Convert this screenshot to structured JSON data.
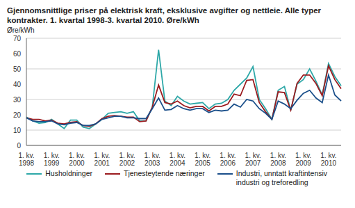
{
  "chart_data": {
    "type": "line",
    "title": "Gjennomsnittlige priser på elektrisk kraft, eksklusive avgifter og nettleie. Alle typer kontrakter. 1. kvartal 1998-3. kvartal 2010. Øre/kWh",
    "y_label": "Øre/kWh",
    "categories": [
      "1. kv. 1998",
      null,
      null,
      null,
      "1. kv. 1999",
      null,
      null,
      null,
      "1. kv. 2000",
      null,
      null,
      null,
      "1. kv. 2001",
      null,
      null,
      null,
      "1. kv. 2002",
      null,
      null,
      null,
      "1. kv. 2003",
      null,
      null,
      null,
      "1. kv. 2004",
      null,
      null,
      null,
      "1. kv. 2005",
      null,
      null,
      null,
      "1. kv. 2006",
      null,
      null,
      null,
      "1. kv. 2007",
      null,
      null,
      null,
      "1. kv. 2008",
      null,
      null,
      null,
      "1. kv. 2009",
      null,
      null,
      null,
      "1. kv. 2010",
      null,
      null
    ],
    "series": [
      {
        "name": "Husholdninger",
        "color": "#2ea8a8",
        "values": [
          18.5,
          16,
          14.5,
          15,
          17,
          14,
          11,
          16.5,
          16.5,
          12,
          11,
          14,
          17,
          21,
          21.5,
          22,
          21,
          22,
          16,
          16,
          25,
          62.5,
          29,
          26,
          32,
          29,
          27,
          27.5,
          28,
          24,
          27,
          27.5,
          30,
          36,
          40,
          44,
          51.5,
          30,
          24,
          17,
          36,
          38.5,
          23,
          40,
          43,
          50,
          42,
          33,
          53.5,
          45,
          39
        ]
      },
      {
        "name": "Tjenesteytende næringer",
        "color": "#9b1b1f",
        "values": [
          18,
          17,
          17,
          16,
          16.5,
          14.5,
          14,
          15,
          15.5,
          13,
          12.5,
          14,
          17.5,
          19,
          19.5,
          19,
          18.5,
          18.5,
          15.5,
          16,
          25,
          39.5,
          28,
          27,
          29,
          26,
          24.5,
          25.5,
          25.5,
          22.5,
          25.5,
          25.5,
          27,
          33.5,
          32.5,
          42.5,
          43,
          28,
          22,
          17,
          35,
          34.5,
          23,
          40.5,
          46,
          46,
          40.5,
          32.5,
          52,
          43,
          37
        ]
      },
      {
        "name": "Industri, unntatt kraftintensiv industri og treforedling",
        "color": "#1a4f8a",
        "values": [
          18,
          16,
          15.5,
          15.5,
          16,
          14,
          13.5,
          14.5,
          15,
          13,
          13,
          14,
          17,
          18,
          19,
          19,
          18,
          18,
          17.5,
          17.5,
          24,
          31,
          23,
          23.5,
          26,
          24,
          23,
          24,
          24,
          21.5,
          23,
          22.5,
          23,
          27,
          25,
          30,
          29,
          24,
          21,
          17,
          29,
          27,
          24,
          29.5,
          34,
          36,
          31,
          28,
          46,
          33,
          29
        ]
      }
    ],
    "ylim": [
      0,
      70
    ],
    "yticks": [
      0,
      10,
      20,
      30,
      40,
      50,
      60,
      70
    ],
    "grid": true,
    "legend": "bottom"
  }
}
